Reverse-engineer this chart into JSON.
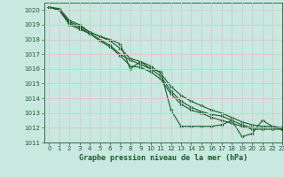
{
  "title": "Graphe pression niveau de la mer (hPa)",
  "bg_color": "#c8e8e0",
  "grid_color": "#d8c8c8",
  "line_color": "#1a5c2a",
  "marker_color": "#1a5c2a",
  "xlim": [
    -0.5,
    23
  ],
  "ylim": [
    1011,
    1020.5
  ],
  "yticks": [
    1011,
    1012,
    1013,
    1014,
    1015,
    1016,
    1017,
    1018,
    1019,
    1020
  ],
  "xticks": [
    0,
    1,
    2,
    3,
    4,
    5,
    6,
    7,
    8,
    9,
    10,
    11,
    12,
    13,
    14,
    15,
    16,
    17,
    18,
    19,
    20,
    21,
    22,
    23
  ],
  "series": [
    [
      1020.2,
      1020.1,
      1019.3,
      1019.0,
      1018.5,
      1018.2,
      1018.0,
      1017.7,
      1016.0,
      1016.5,
      1016.0,
      1015.8,
      1013.2,
      1012.1,
      1012.1,
      1012.1,
      1012.1,
      1012.2,
      1012.5,
      1011.4,
      1011.6,
      1012.5,
      1012.1,
      1011.9
    ],
    [
      1020.2,
      1020.0,
      1019.2,
      1018.9,
      1018.5,
      1018.2,
      1017.9,
      1017.4,
      1016.7,
      1016.5,
      1016.2,
      1015.7,
      1014.8,
      1014.2,
      1013.8,
      1013.5,
      1013.2,
      1013.0,
      1012.7,
      1012.4,
      1012.2,
      1012.1,
      1012.1,
      1012.0
    ],
    [
      1020.2,
      1020.0,
      1019.1,
      1018.8,
      1018.4,
      1018.0,
      1017.6,
      1017.0,
      1016.6,
      1016.3,
      1016.0,
      1015.5,
      1014.5,
      1013.8,
      1013.4,
      1013.1,
      1012.9,
      1012.8,
      1012.5,
      1012.2,
      1012.0,
      1012.0,
      1012.0,
      1011.9
    ],
    [
      1020.2,
      1020.0,
      1019.0,
      1018.7,
      1018.4,
      1017.9,
      1017.5,
      1016.9,
      1016.2,
      1016.1,
      1015.8,
      1015.3,
      1014.3,
      1013.6,
      1013.2,
      1013.0,
      1012.7,
      1012.5,
      1012.3,
      1012.1,
      1011.9,
      1011.9,
      1011.9,
      1011.9
    ]
  ]
}
